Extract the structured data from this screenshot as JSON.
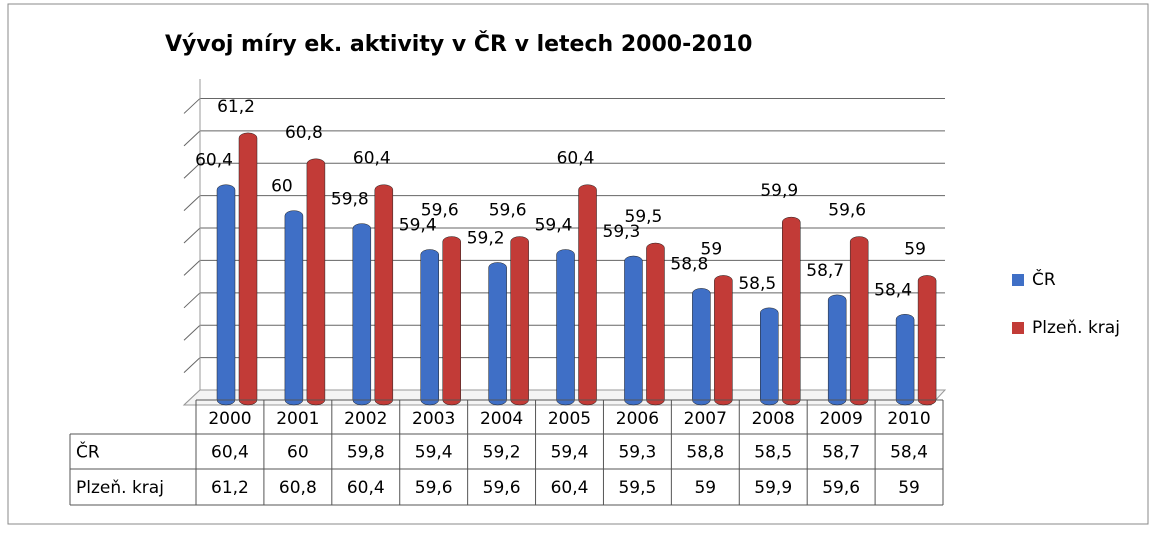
{
  "chart_data": {
    "type": "bar",
    "title": "Vývoj míry ek. aktivity v ČR v letech 2000-2010",
    "categories": [
      "2000",
      "2001",
      "2002",
      "2003",
      "2004",
      "2005",
      "2006",
      "2007",
      "2008",
      "2009",
      "2010"
    ],
    "series": [
      {
        "name": "ČR",
        "color": "#3f6fc6",
        "values": [
          60.4,
          60,
          59.8,
          59.4,
          59.2,
          59.4,
          59.3,
          58.8,
          58.5,
          58.7,
          58.4
        ],
        "value_labels": [
          "60,4",
          "60",
          "59,8",
          "59,4",
          "59,2",
          "59,4",
          "59,3",
          "58,8",
          "58,5",
          "58,7",
          "58,4"
        ]
      },
      {
        "name": "Plzeň. kraj",
        "color": "#c23b37",
        "values": [
          61.2,
          60.8,
          60.4,
          59.6,
          59.6,
          60.4,
          59.5,
          59,
          59.9,
          59.6,
          59
        ],
        "value_labels": [
          "61,2",
          "60,8",
          "60,4",
          "59,6",
          "59,6",
          "60,4",
          "59,5",
          "59",
          "59,9",
          "59,6",
          "59"
        ]
      }
    ],
    "ylim": [
      57,
      61.8
    ],
    "yticks": [
      57,
      57.5,
      58,
      58.5,
      59,
      59.5,
      60,
      60.5,
      61,
      61.5
    ],
    "grid": true,
    "legend": "right"
  }
}
